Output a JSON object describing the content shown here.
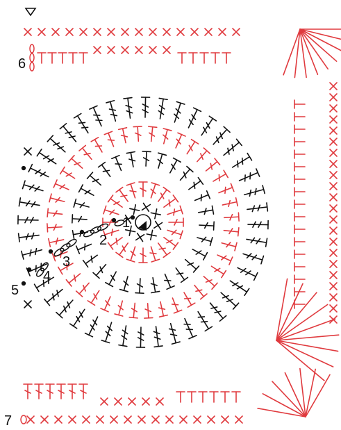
{
  "diagram": {
    "round_labels": [
      "1",
      "2",
      "3",
      "4",
      "5",
      "6",
      "7"
    ],
    "symbols": {
      "single_crochet": "x-mark",
      "double_crochet": "t-stitch-one-bar",
      "treble_crochet": "t-stitch-two-bars",
      "chain": "oval",
      "slip_stitch": "dot",
      "magic_ring": "filled-triangle",
      "start_marker": "open-triangle"
    },
    "colors": {
      "odd_rounds": "#111111",
      "even_rounds": "#e03a3e",
      "background": "#ffffff"
    }
  }
}
